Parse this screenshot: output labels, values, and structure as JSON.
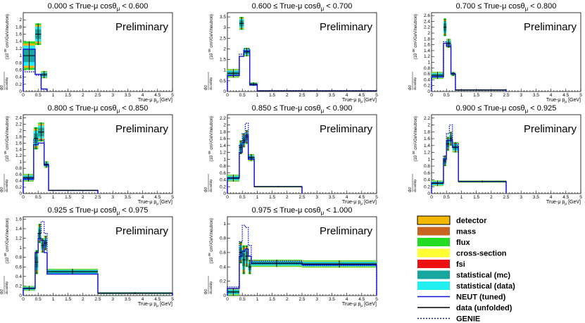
{
  "figure": {
    "common": {
      "xlabel": "True-μ p",
      "xlabel_sub": "μ",
      "xlabel_unit": "[GeV]",
      "ylabel_main": "cm²/GeV/neutron)",
      "ylabel_pre": "(10",
      "ylabel_exp": "-38",
      "ylabel_frac_top": "dσ",
      "ylabel_frac_bot": "dcosθdp",
      "preliminary": "Preliminary",
      "xticks": [
        "0",
        "0.5",
        "1",
        "1.5",
        "2",
        "2.5",
        "3",
        "3.5",
        "4",
        "4.5",
        "5"
      ]
    },
    "legend": [
      {
        "label": "detector",
        "kind": "box",
        "color": "#f5b800"
      },
      {
        "label": "mass",
        "kind": "box",
        "color": "#c8641e"
      },
      {
        "label": "flux",
        "kind": "box",
        "color": "#22dd22"
      },
      {
        "label": "cross-section",
        "kind": "box",
        "color": "#ffff33"
      },
      {
        "label": "fsi",
        "kind": "box",
        "color": "#ee1111"
      },
      {
        "label": "statistical (mc)",
        "kind": "box",
        "color": "#16a8a0"
      },
      {
        "label": "statistical (data)",
        "kind": "box",
        "color": "#22f0f0"
      },
      {
        "label": "NEUT (tuned)",
        "kind": "line",
        "color": "#1111dd"
      },
      {
        "label": "data (unfolded)",
        "kind": "line",
        "color": "#000000"
      },
      {
        "label": "GENIE",
        "kind": "dotted",
        "color": "#1111dd"
      }
    ]
  },
  "chart_data": [
    {
      "type": "bar",
      "title": "0.000 ≤ True-μ cosθ",
      "title_sub": "μ",
      "title_tail": " < 0.600",
      "xlim": [
        0,
        5
      ],
      "ylim": [
        0,
        2.2
      ],
      "yticks": [
        "0.2",
        "0.4",
        "0.6",
        "0.8",
        "1",
        "1.2",
        "1.4",
        "1.6",
        "1.8",
        "2"
      ],
      "bins": [
        [
          0,
          0.4
        ],
        [
          0.4,
          0.6
        ],
        [
          0.6,
          0.8
        ]
      ],
      "neut": [
        1.18,
        0.48,
        0.07
      ],
      "genie": [
        0.55,
        0.45,
        0.06
      ],
      "data": [
        1.0,
        1.6,
        0.47
      ],
      "err": [
        0.4,
        0.3,
        0.1
      ]
    },
    {
      "type": "bar",
      "title": "0.600 ≤ True-μ cosθ",
      "title_sub": "μ",
      "title_tail": " < 0.700",
      "xlim": [
        0,
        5
      ],
      "ylim": [
        0,
        3.7
      ],
      "yticks": [
        "0.5",
        "1",
        "1.5",
        "2",
        "2.5",
        "3",
        "3.5"
      ],
      "bins": [
        [
          0,
          0.4
        ],
        [
          0.4,
          0.55
        ],
        [
          0.55,
          0.75
        ],
        [
          0.75,
          1.0
        ],
        [
          1.0,
          5.0
        ]
      ],
      "neut": [
        0.75,
        1.65,
        1.9,
        0.3,
        0.03
      ],
      "genie": [
        0.75,
        1.75,
        2.0,
        0.35,
        0.03
      ],
      "data": [
        0.85,
        3.2,
        1.85,
        0.35,
        0.03
      ],
      "err": [
        0.2,
        0.3,
        0.2,
        0.08,
        0.02
      ]
    },
    {
      "type": "bar",
      "title": "0.700 ≤ True-μ cosθ",
      "title_sub": "μ",
      "title_tail": " < 0.800",
      "xlim": [
        0,
        5
      ],
      "ylim": [
        0,
        2.7
      ],
      "yticks": [
        "0.2",
        "0.4",
        "0.6",
        "0.8",
        "1",
        "1.2",
        "1.4",
        "1.6",
        "1.8",
        "2",
        "2.2",
        "2.4",
        "2.6"
      ],
      "bins": [
        [
          0,
          0.4
        ],
        [
          0.4,
          0.5
        ],
        [
          0.5,
          0.65
        ],
        [
          0.65,
          0.8
        ],
        [
          0.8,
          2.5
        ]
      ],
      "neut": [
        0.5,
        1.65,
        1.55,
        0.6,
        0.05
      ],
      "genie": [
        0.5,
        1.7,
        1.6,
        0.62,
        0.05
      ],
      "data": [
        0.55,
        2.2,
        1.65,
        0.6,
        0.05
      ],
      "err": [
        0.12,
        0.3,
        0.15,
        0.07,
        0.02
      ]
    },
    {
      "type": "bar",
      "title": "0.800 ≤ True-μ cosθ",
      "title_sub": "μ",
      "title_tail": " < 0.850",
      "xlim": [
        0,
        5
      ],
      "ylim": [
        0,
        2.5
      ],
      "yticks": [
        "0.2",
        "0.4",
        "0.6",
        "0.8",
        "1",
        "1.2",
        "1.4",
        "1.6",
        "1.8",
        "2",
        "2.2",
        "2.4"
      ],
      "bins": [
        [
          0,
          0.35
        ],
        [
          0.35,
          0.5
        ],
        [
          0.5,
          0.7
        ],
        [
          0.7,
          0.85
        ],
        [
          0.85,
          2.5
        ]
      ],
      "neut": [
        0.45,
        1.55,
        1.6,
        0.9,
        0.1
      ],
      "genie": [
        0.48,
        1.7,
        1.7,
        0.92,
        0.1
      ],
      "data": [
        0.5,
        1.75,
        1.95,
        0.92,
        0.1
      ],
      "err": [
        0.12,
        0.35,
        0.3,
        0.1,
        0.02
      ]
    },
    {
      "type": "bar",
      "title": "0.850 ≤ True-μ cosθ",
      "title_sub": "μ",
      "title_tail": " < 0.900",
      "xlim": [
        0,
        5
      ],
      "ylim": [
        0,
        2.3
      ],
      "yticks": [
        "0.2",
        "0.4",
        "0.6",
        "0.8",
        "1",
        "1.2",
        "1.4",
        "1.6",
        "1.8",
        "2",
        "2.2"
      ],
      "bins": [
        [
          0,
          0.4
        ],
        [
          0.4,
          0.5
        ],
        [
          0.5,
          0.6
        ],
        [
          0.6,
          0.7
        ],
        [
          0.7,
          0.9
        ],
        [
          0.9,
          2.5
        ]
      ],
      "neut": [
        0.45,
        1.2,
        1.5,
        1.7,
        1.0,
        0.2
      ],
      "genie": [
        0.45,
        1.4,
        1.75,
        2.05,
        1.05,
        0.2
      ],
      "data": [
        0.45,
        1.35,
        1.55,
        1.65,
        1.05,
        0.2
      ],
      "err": [
        0.1,
        0.2,
        0.2,
        0.2,
        0.1,
        0.02
      ]
    },
    {
      "type": "bar",
      "title": "0.900 ≤ True-μ cosθ",
      "title_sub": "μ",
      "title_tail": " < 0.925",
      "xlim": [
        0,
        5
      ],
      "ylim": [
        0,
        2.3
      ],
      "yticks": [
        "0.2",
        "0.4",
        "0.6",
        "0.8",
        "1",
        "1.2",
        "1.4",
        "1.6",
        "1.8",
        "2",
        "2.2"
      ],
      "bins": [
        [
          0,
          0.4
        ],
        [
          0.4,
          0.5
        ],
        [
          0.5,
          0.6
        ],
        [
          0.6,
          0.7
        ],
        [
          0.7,
          0.9
        ],
        [
          0.9,
          2.5
        ]
      ],
      "neut": [
        0.3,
        1.0,
        1.55,
        1.55,
        1.35,
        0.35
      ],
      "genie": [
        0.32,
        1.1,
        1.75,
        2.0,
        1.45,
        0.35
      ],
      "data": [
        0.3,
        0.95,
        1.45,
        1.6,
        1.35,
        0.35
      ],
      "err": [
        0.08,
        0.15,
        0.2,
        0.2,
        0.15,
        0.03
      ]
    },
    {
      "type": "bar",
      "title": "0.925 ≤ True-μ cosθ",
      "title_sub": "μ",
      "title_tail": " < 0.975",
      "xlim": [
        0,
        5
      ],
      "ylim": [
        0,
        1.65
      ],
      "yticks": [
        "0.2",
        "0.4",
        "0.6",
        "0.8",
        "1",
        "1.2",
        "1.4",
        "1.6"
      ],
      "bins": [
        [
          0,
          0.4
        ],
        [
          0.4,
          0.5
        ],
        [
          0.5,
          0.6
        ],
        [
          0.6,
          0.7
        ],
        [
          0.7,
          0.8
        ],
        [
          0.8,
          2.5
        ],
        [
          2.5,
          5.0
        ]
      ],
      "neut": [
        0.15,
        0.9,
        1.2,
        1.15,
        0.9,
        0.45,
        0.05
      ],
      "genie": [
        0.15,
        0.9,
        1.3,
        1.55,
        1.3,
        0.45,
        0.05
      ],
      "data": [
        0.15,
        0.7,
        1.3,
        1.05,
        1.1,
        0.5,
        0.05
      ],
      "err": [
        0.05,
        0.25,
        0.2,
        0.15,
        0.15,
        0.06,
        0.02
      ]
    },
    {
      "type": "bar",
      "title": "0.975 ≤ True-μ cosθ",
      "title_sub": "μ",
      "title_tail": " < 1.000",
      "xlim": [
        0,
        5
      ],
      "ylim": [
        0,
        1.1
      ],
      "yticks": [
        "0.2",
        "0.4",
        "0.6",
        "0.8",
        "1"
      ],
      "bins": [
        [
          0,
          0.4
        ],
        [
          0.4,
          0.5
        ],
        [
          0.5,
          0.6
        ],
        [
          0.6,
          0.7
        ],
        [
          0.7,
          0.8
        ],
        [
          0.8,
          2.5
        ],
        [
          2.5,
          5.0
        ]
      ],
      "neut": [
        0.1,
        0.55,
        0.62,
        0.65,
        0.55,
        0.45,
        0.43
      ],
      "genie": [
        0.12,
        0.75,
        0.98,
        0.95,
        0.7,
        0.48,
        0.42
      ],
      "data": [
        0.05,
        0.6,
        0.5,
        0.55,
        0.4,
        0.45,
        0.44
      ],
      "err": [
        0.05,
        0.15,
        0.2,
        0.15,
        0.1,
        0.05,
        0.05
      ]
    }
  ]
}
